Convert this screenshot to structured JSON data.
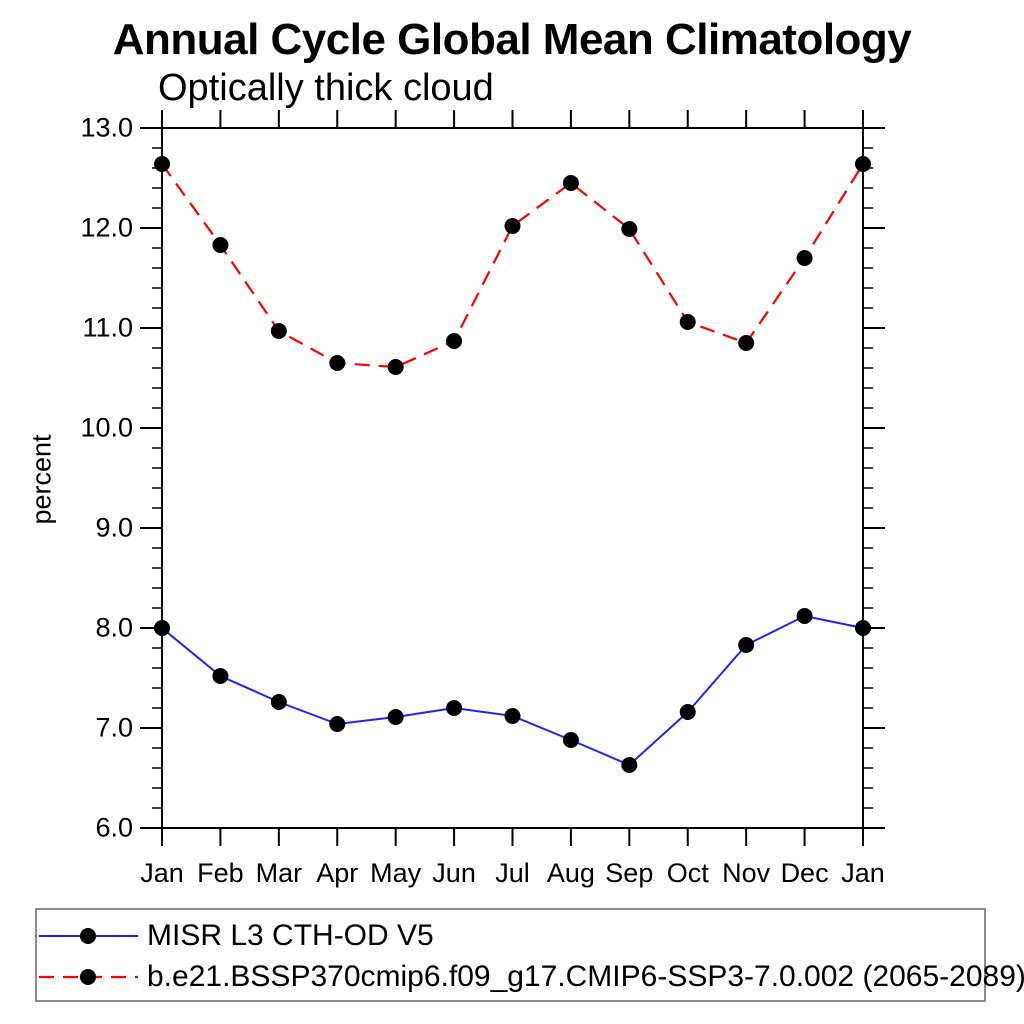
{
  "page": {
    "background": "#ffffff"
  },
  "chart_data": {
    "type": "line",
    "title": "Annual Cycle Global Mean Climatology",
    "subtitle": "Optically thick cloud",
    "ylabel": "percent",
    "xlabel": "",
    "categories": [
      "Jan",
      "Feb",
      "Mar",
      "Apr",
      "May",
      "Jun",
      "Jul",
      "Aug",
      "Sep",
      "Oct",
      "Nov",
      "Dec",
      "Jan"
    ],
    "y_axis": {
      "min": 6.0,
      "max": 13.0,
      "major_step": 1.0,
      "minor_step": 0.2,
      "tick_labels": [
        "6.0",
        "7.0",
        "8.0",
        "9.0",
        "10.0",
        "11.0",
        "12.0",
        "13.0"
      ]
    },
    "grid": false,
    "legend_position": "bottom",
    "axis_color": "#000000",
    "marker": {
      "shape": "filled-circle",
      "color": "#000000",
      "radius": 8
    },
    "series": [
      {
        "name": "MISR L3 CTH-OD V5",
        "color": "#2222ee",
        "line_style": "solid",
        "values": [
          8.0,
          7.52,
          7.26,
          7.04,
          7.11,
          7.2,
          7.12,
          6.88,
          6.63,
          7.16,
          7.83,
          8.12,
          8.0
        ]
      },
      {
        "name": "b.e21.BSSP370cmip6.f09_g17.CMIP6-SSP3-7.0.002 (2065-2089)",
        "color": "#ff0000",
        "line_style": "dashed",
        "values": [
          12.64,
          11.83,
          10.97,
          10.65,
          10.61,
          10.87,
          12.02,
          12.45,
          11.99,
          11.06,
          10.85,
          11.7,
          12.64
        ]
      }
    ]
  }
}
